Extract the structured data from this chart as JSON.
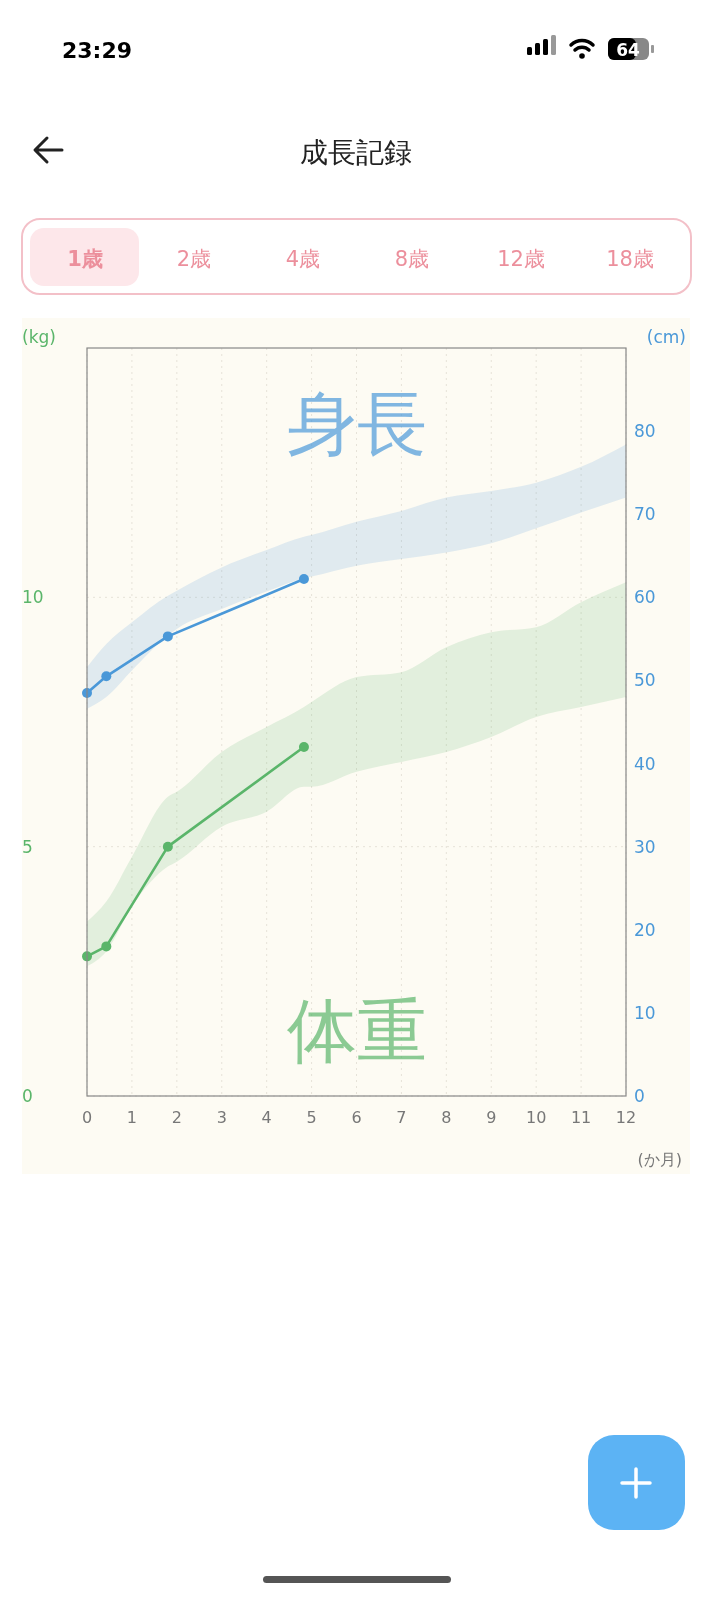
{
  "chart_data": {
    "type": "line",
    "title": "成長記録",
    "xlabel": "(か月)",
    "ylabel": "(kg)",
    "y2label": "(cm)",
    "annotations": [
      "23:29",
      "64",
      "1歳",
      "2歳",
      "4歳",
      "8歳",
      "12歳",
      "18歳"
    ],
    "xlim": [
      0,
      12
    ],
    "xticks": [
      0,
      1,
      2,
      3,
      4,
      5,
      6,
      7,
      8,
      9,
      10,
      11,
      12
    ],
    "ylim": [
      0,
      15
    ],
    "yticks": [
      0,
      5,
      10
    ],
    "y2lim": [
      0,
      90
    ],
    "y2ticks": [
      0,
      10,
      20,
      30,
      40,
      50,
      60,
      70,
      80
    ],
    "grid": true,
    "legend": false,
    "marker": "circle",
    "line_style": "solid",
    "series": [
      {
        "name": "身長",
        "color": "#4a98d8",
        "axis": "y2",
        "x": [
          0,
          0.43,
          1,
          1.8,
          2,
          3,
          4,
          4.83,
          5,
          6,
          7,
          8,
          9,
          10,
          11,
          12
        ],
        "values": [
          48.5,
          50.5,
          null,
          55.3,
          null,
          null,
          null,
          62.2,
          null,
          null,
          null,
          null,
          null,
          null,
          null,
          null
        ],
        "lower": [
          46.6,
          48,
          51.2,
          55.4,
          56.2,
          58.6,
          60.7,
          62.3,
          62.5,
          63.8,
          64.6,
          65.4,
          66.5,
          68.3,
          70.2,
          72
        ],
        "upper": [
          51.6,
          54.4,
          57,
          60.2,
          60.8,
          63.6,
          65.7,
          67.3,
          67.5,
          69.1,
          70.4,
          72,
          72.8,
          73.8,
          75.7,
          78.4
        ]
      },
      {
        "name": "体重",
        "color": "#5ab56a",
        "axis": "y",
        "x": [
          0,
          0.43,
          1,
          1.8,
          2,
          3,
          4,
          4.83,
          5,
          6,
          7,
          8,
          9,
          10,
          11,
          12
        ],
        "values": [
          2.8,
          3.0,
          null,
          5.0,
          null,
          null,
          null,
          7.0,
          null,
          null,
          null,
          null,
          null,
          null,
          null,
          null
        ],
        "lower": [
          2.6,
          2.9,
          3.8,
          4.6,
          4.7,
          5.4,
          5.7,
          6.2,
          6.2,
          6.5,
          6.7,
          6.9,
          7.2,
          7.6,
          7.8,
          8.0
        ],
        "upper": [
          3.5,
          3.9,
          4.8,
          6.0,
          6.1,
          6.9,
          7.4,
          7.8,
          7.9,
          8.4,
          8.5,
          9.0,
          9.3,
          9.4,
          9.9,
          10.3
        ]
      }
    ]
  }
}
